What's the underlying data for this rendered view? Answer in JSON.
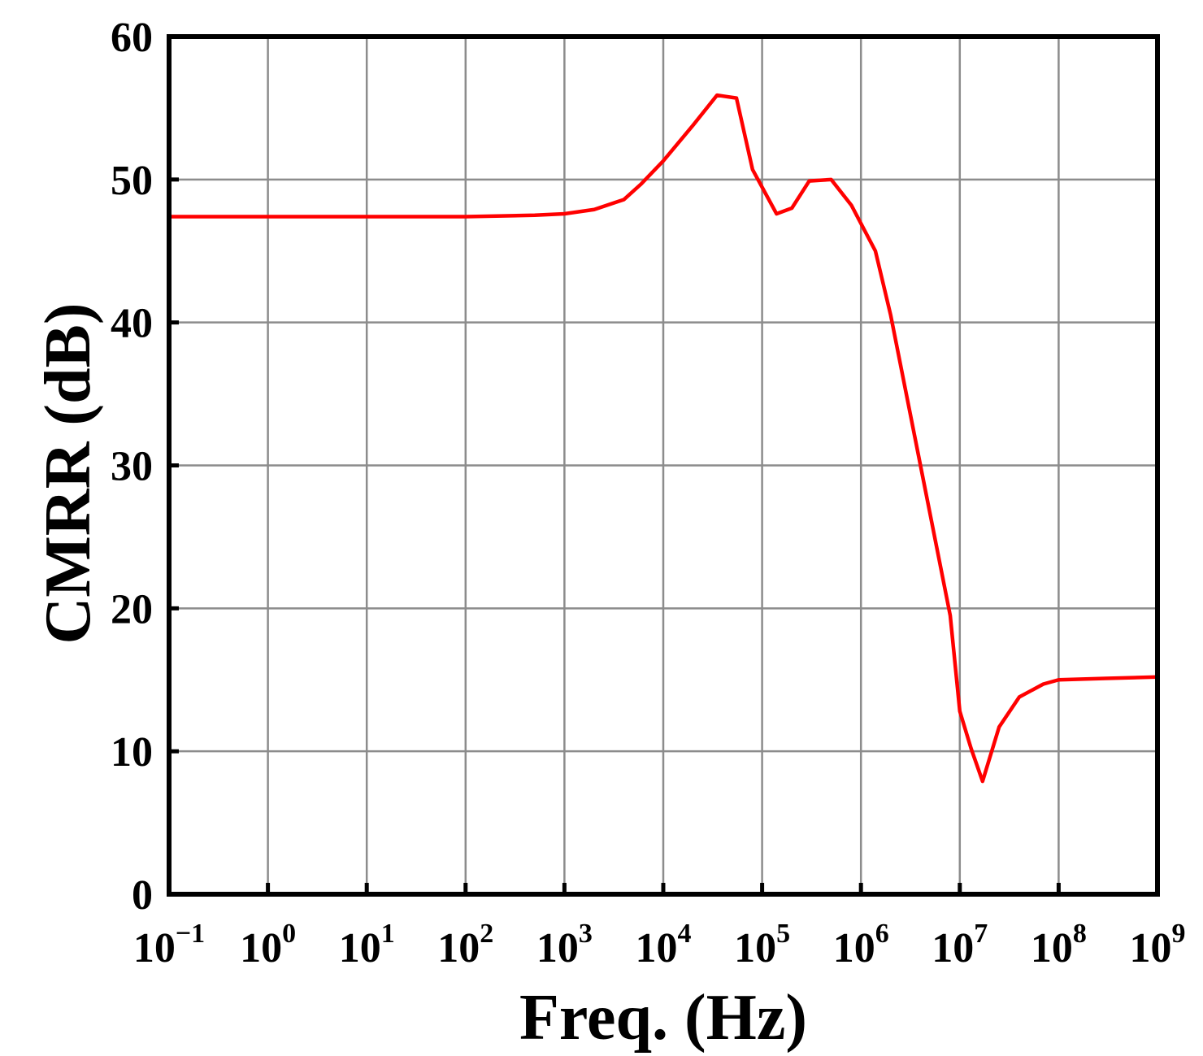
{
  "chart_data": {
    "type": "line",
    "title": "",
    "xlabel": "Freq. (Hz)",
    "ylabel": "CMRR (dB)",
    "x_scale": "log",
    "xlim": [
      0.1,
      1000000000
    ],
    "ylim": [
      0,
      60
    ],
    "grid": true,
    "x_ticks": [
      {
        "base": "10",
        "exp": "−1",
        "value": 0.1
      },
      {
        "base": "10",
        "exp": "0",
        "value": 1
      },
      {
        "base": "10",
        "exp": "1",
        "value": 10
      },
      {
        "base": "10",
        "exp": "2",
        "value": 100
      },
      {
        "base": "10",
        "exp": "3",
        "value": 1000
      },
      {
        "base": "10",
        "exp": "4",
        "value": 10000
      },
      {
        "base": "10",
        "exp": "5",
        "value": 100000
      },
      {
        "base": "10",
        "exp": "6",
        "value": 1000000
      },
      {
        "base": "10",
        "exp": "7",
        "value": 10000000
      },
      {
        "base": "10",
        "exp": "8",
        "value": 100000000
      },
      {
        "base": "10",
        "exp": "9",
        "value": 1000000000
      }
    ],
    "y_ticks": [
      "0",
      "10",
      "20",
      "30",
      "40",
      "50",
      "60"
    ],
    "series": [
      {
        "color": "#ff0000",
        "points": [
          [
            0.1,
            47.4
          ],
          [
            1,
            47.4
          ],
          [
            10,
            47.4
          ],
          [
            100,
            47.4
          ],
          [
            500,
            47.5
          ],
          [
            1000,
            47.6
          ],
          [
            2000,
            47.9
          ],
          [
            4000,
            48.6
          ],
          [
            6000,
            49.7
          ],
          [
            10000,
            51.3
          ],
          [
            20000,
            53.8
          ],
          [
            35000,
            55.9
          ],
          [
            55000,
            55.7
          ],
          [
            80000,
            50.7
          ],
          [
            140000,
            47.6
          ],
          [
            200000,
            48.0
          ],
          [
            300000,
            49.9
          ],
          [
            500000,
            50.0
          ],
          [
            800000,
            48.2
          ],
          [
            1400000,
            45.0
          ],
          [
            2000000,
            40.5
          ],
          [
            4000000,
            30.0
          ],
          [
            8000000,
            19.5
          ],
          [
            10000000,
            12.8
          ],
          [
            13000000,
            10.2
          ],
          [
            17000000,
            7.9
          ],
          [
            25000000,
            11.7
          ],
          [
            40000000,
            13.8
          ],
          [
            70000000,
            14.7
          ],
          [
            100000000,
            15.0
          ],
          [
            300000000,
            15.1
          ],
          [
            1000000000,
            15.2
          ]
        ]
      }
    ]
  }
}
